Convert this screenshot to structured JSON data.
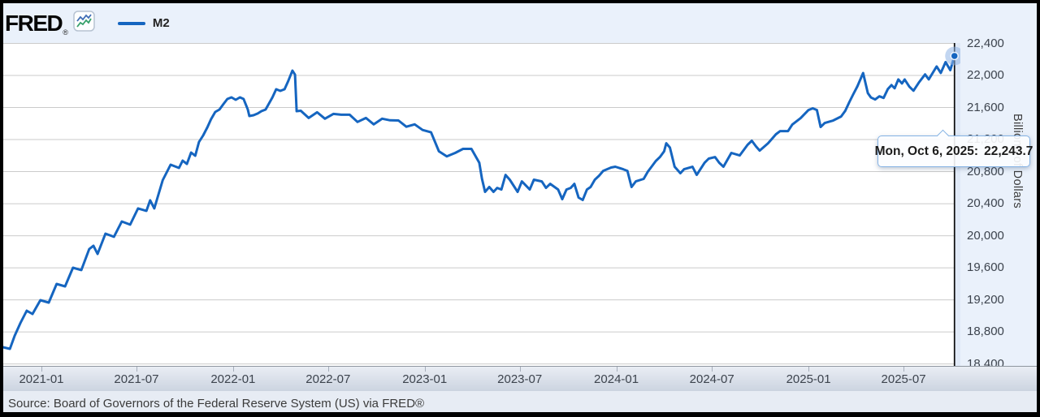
{
  "header": {
    "logo_text": "FRED",
    "logo_registered": "®",
    "legend": {
      "series_label": "M2"
    }
  },
  "tooltip": {
    "date_label": "Mon, Oct 6, 2025:",
    "value_label": "22,243.7"
  },
  "footer": {
    "source_text": "Source: Board of Governors of the Federal Reserve System (US) via FRED®"
  },
  "colors": {
    "line": "#1565c0",
    "gridline": "#cbcbcb",
    "crosshair": "#0a0a0a",
    "highlight_strip": "#e0e9f7",
    "marker_halo": "rgba(144,181,229,0.55)"
  },
  "chart_data": {
    "type": "line",
    "title": "M2",
    "xlabel": "",
    "ylabel": "Billions of Dollars",
    "units": "Billions of Dollars",
    "grid": "horizontal",
    "legend_position": "top-left",
    "ylim": [
      18400,
      22400
    ],
    "y_ticks": [
      {
        "value": 22400,
        "label": "22,400"
      },
      {
        "value": 22000,
        "label": "22,000"
      },
      {
        "value": 21600,
        "label": "21,600"
      },
      {
        "value": 21200,
        "label": "21,200"
      },
      {
        "value": 20800,
        "label": "20,800"
      },
      {
        "value": 20400,
        "label": "20,400"
      },
      {
        "value": 20000,
        "label": "20,000"
      },
      {
        "value": 19600,
        "label": "19,600"
      },
      {
        "value": 19200,
        "label": "19,200"
      },
      {
        "value": 18800,
        "label": "18,800"
      },
      {
        "value": 18400,
        "label": "18,400"
      }
    ],
    "x_ticks": [
      {
        "label": "2021-01",
        "date": "2021-01-01"
      },
      {
        "label": "2021-07",
        "date": "2021-07-01"
      },
      {
        "label": "2022-01",
        "date": "2022-01-01"
      },
      {
        "label": "2022-07",
        "date": "2022-07-01"
      },
      {
        "label": "2023-01",
        "date": "2023-01-01"
      },
      {
        "label": "2023-07",
        "date": "2023-07-01"
      },
      {
        "label": "2024-01",
        "date": "2024-01-01"
      },
      {
        "label": "2024-07",
        "date": "2024-07-01"
      },
      {
        "label": "2025-01",
        "date": "2025-01-01"
      },
      {
        "label": "2025-07",
        "date": "2025-07-01"
      }
    ],
    "highlight": {
      "date": "2025-10-06",
      "value": 22243.7,
      "tooltip": "Mon, Oct 6, 2025:  22,243.7"
    },
    "series": [
      {
        "name": "M2",
        "color": "#1565c0",
        "points": [
          [
            "2020-10-14",
            18618
          ],
          [
            "2020-11-02",
            18588
          ],
          [
            "2020-11-11",
            18750
          ],
          [
            "2020-11-22",
            18912
          ],
          [
            "2020-12-04",
            19064
          ],
          [
            "2020-12-15",
            19024
          ],
          [
            "2020-12-30",
            19196
          ],
          [
            "2021-01-15",
            19165
          ],
          [
            "2021-01-30",
            19398
          ],
          [
            "2021-02-15",
            19368
          ],
          [
            "2021-03-02",
            19601
          ],
          [
            "2021-03-18",
            19571
          ],
          [
            "2021-04-02",
            19834
          ],
          [
            "2021-04-10",
            19875
          ],
          [
            "2021-04-18",
            19773
          ],
          [
            "2021-05-03",
            20026
          ],
          [
            "2021-05-19",
            19986
          ],
          [
            "2021-06-03",
            20178
          ],
          [
            "2021-06-19",
            20138
          ],
          [
            "2021-07-04",
            20341
          ],
          [
            "2021-07-20",
            20310
          ],
          [
            "2021-07-27",
            20442
          ],
          [
            "2021-08-04",
            20341
          ],
          [
            "2021-08-20",
            20694
          ],
          [
            "2021-09-04",
            20886
          ],
          [
            "2021-09-20",
            20846
          ],
          [
            "2021-09-27",
            20937
          ],
          [
            "2021-10-05",
            20896
          ],
          [
            "2021-10-13",
            21038
          ],
          [
            "2021-10-21",
            20998
          ],
          [
            "2021-10-28",
            21170
          ],
          [
            "2021-11-05",
            21251
          ],
          [
            "2021-11-13",
            21352
          ],
          [
            "2021-11-20",
            21453
          ],
          [
            "2021-11-28",
            21545
          ],
          [
            "2021-12-06",
            21575
          ],
          [
            "2021-12-14",
            21646
          ],
          [
            "2021-12-21",
            21707
          ],
          [
            "2021-12-29",
            21727
          ],
          [
            "2022-01-06",
            21696
          ],
          [
            "2022-01-14",
            21727
          ],
          [
            "2022-01-21",
            21707
          ],
          [
            "2022-01-29",
            21575
          ],
          [
            "2022-02-01",
            21494
          ],
          [
            "2022-02-09",
            21504
          ],
          [
            "2022-02-17",
            21525
          ],
          [
            "2022-02-24",
            21555
          ],
          [
            "2022-03-04",
            21575
          ],
          [
            "2022-03-17",
            21727
          ],
          [
            "2022-03-24",
            21828
          ],
          [
            "2022-04-01",
            21808
          ],
          [
            "2022-04-09",
            21828
          ],
          [
            "2022-04-16",
            21929
          ],
          [
            "2022-04-24",
            22061
          ],
          [
            "2022-04-29",
            22010
          ],
          [
            "2022-05-02",
            21555
          ],
          [
            "2022-05-10",
            21560
          ],
          [
            "2022-05-25",
            21470
          ],
          [
            "2022-06-10",
            21540
          ],
          [
            "2022-06-25",
            21460
          ],
          [
            "2022-07-11",
            21520
          ],
          [
            "2022-07-26",
            21510
          ],
          [
            "2022-08-11",
            21510
          ],
          [
            "2022-08-26",
            21420
          ],
          [
            "2022-09-11",
            21470
          ],
          [
            "2022-09-26",
            21390
          ],
          [
            "2022-10-12",
            21460
          ],
          [
            "2022-10-27",
            21440
          ],
          [
            "2022-11-12",
            21438
          ],
          [
            "2022-11-27",
            21360
          ],
          [
            "2022-12-13",
            21390
          ],
          [
            "2022-12-28",
            21320
          ],
          [
            "2023-01-13",
            21290
          ],
          [
            "2023-01-28",
            21053
          ],
          [
            "2023-02-12",
            20990
          ],
          [
            "2023-02-28",
            21033
          ],
          [
            "2023-03-15",
            21084
          ],
          [
            "2023-03-31",
            21084
          ],
          [
            "2023-04-15",
            20911
          ],
          [
            "2023-04-20",
            20710
          ],
          [
            "2023-04-26",
            20547
          ],
          [
            "2023-05-04",
            20608
          ],
          [
            "2023-05-12",
            20547
          ],
          [
            "2023-05-19",
            20597
          ],
          [
            "2023-05-27",
            20577
          ],
          [
            "2023-06-04",
            20759
          ],
          [
            "2023-06-12",
            20699
          ],
          [
            "2023-06-27",
            20547
          ],
          [
            "2023-07-05",
            20678
          ],
          [
            "2023-07-20",
            20577
          ],
          [
            "2023-07-28",
            20699
          ],
          [
            "2023-08-12",
            20678
          ],
          [
            "2023-08-20",
            20597
          ],
          [
            "2023-08-28",
            20648
          ],
          [
            "2023-09-12",
            20577
          ],
          [
            "2023-09-20",
            20456
          ],
          [
            "2023-09-28",
            20577
          ],
          [
            "2023-10-06",
            20597
          ],
          [
            "2023-10-13",
            20648
          ],
          [
            "2023-10-21",
            20476
          ],
          [
            "2023-10-29",
            20446
          ],
          [
            "2023-11-06",
            20577
          ],
          [
            "2023-11-13",
            20608
          ],
          [
            "2023-11-21",
            20699
          ],
          [
            "2023-11-29",
            20749
          ],
          [
            "2023-12-07",
            20810
          ],
          [
            "2023-12-22",
            20851
          ],
          [
            "2023-12-30",
            20861
          ],
          [
            "2024-01-14",
            20830
          ],
          [
            "2024-01-22",
            20810
          ],
          [
            "2024-01-30",
            20608
          ],
          [
            "2024-02-07",
            20678
          ],
          [
            "2024-02-22",
            20709
          ],
          [
            "2024-03-01",
            20800
          ],
          [
            "2024-03-08",
            20861
          ],
          [
            "2024-03-16",
            20932
          ],
          [
            "2024-03-24",
            20982
          ],
          [
            "2024-04-01",
            21053
          ],
          [
            "2024-04-05",
            21154
          ],
          [
            "2024-04-12",
            21100
          ],
          [
            "2024-04-21",
            20861
          ],
          [
            "2024-05-02",
            20780
          ],
          [
            "2024-05-09",
            20830
          ],
          [
            "2024-05-25",
            20861
          ],
          [
            "2024-06-02",
            20759
          ],
          [
            "2024-06-17",
            20911
          ],
          [
            "2024-06-25",
            20962
          ],
          [
            "2024-07-07",
            20982
          ],
          [
            "2024-07-15",
            20911
          ],
          [
            "2024-07-23",
            20861
          ],
          [
            "2024-08-07",
            21033
          ],
          [
            "2024-08-23",
            21002
          ],
          [
            "2024-09-07",
            21134
          ],
          [
            "2024-09-15",
            21185
          ],
          [
            "2024-09-23",
            21114
          ],
          [
            "2024-09-30",
            21063
          ],
          [
            "2024-10-16",
            21154
          ],
          [
            "2024-10-31",
            21266
          ],
          [
            "2024-11-08",
            21306
          ],
          [
            "2024-11-23",
            21306
          ],
          [
            "2024-12-01",
            21387
          ],
          [
            "2024-12-17",
            21468
          ],
          [
            "2025-01-01",
            21569
          ],
          [
            "2025-01-09",
            21590
          ],
          [
            "2025-01-17",
            21569
          ],
          [
            "2025-01-24",
            21357
          ],
          [
            "2025-02-01",
            21407
          ],
          [
            "2025-02-17",
            21438
          ],
          [
            "2025-03-04",
            21488
          ],
          [
            "2025-03-12",
            21559
          ],
          [
            "2025-03-20",
            21671
          ],
          [
            "2025-03-27",
            21762
          ],
          [
            "2025-04-04",
            21863
          ],
          [
            "2025-04-15",
            22030
          ],
          [
            "2025-04-24",
            21780
          ],
          [
            "2025-04-30",
            21725
          ],
          [
            "2025-05-08",
            21700
          ],
          [
            "2025-05-16",
            21740
          ],
          [
            "2025-05-24",
            21720
          ],
          [
            "2025-06-01",
            21830
          ],
          [
            "2025-06-08",
            21880
          ],
          [
            "2025-06-14",
            21840
          ],
          [
            "2025-06-21",
            21950
          ],
          [
            "2025-06-28",
            21900
          ],
          [
            "2025-07-03",
            21950
          ],
          [
            "2025-07-12",
            21860
          ],
          [
            "2025-07-20",
            21810
          ],
          [
            "2025-07-30",
            21910
          ],
          [
            "2025-08-11",
            22013
          ],
          [
            "2025-08-18",
            21950
          ],
          [
            "2025-09-02",
            22112
          ],
          [
            "2025-09-10",
            22031
          ],
          [
            "2025-09-19",
            22167
          ],
          [
            "2025-09-28",
            22066
          ],
          [
            "2025-10-06",
            22243.7
          ]
        ]
      }
    ]
  }
}
